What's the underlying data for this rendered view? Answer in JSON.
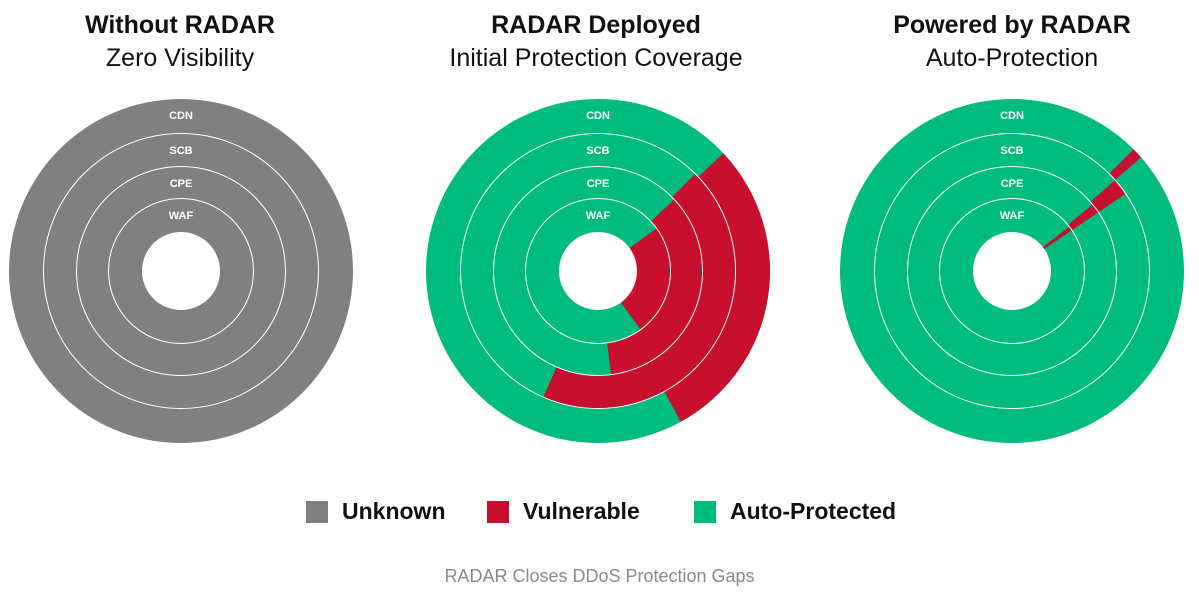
{
  "chart_data": [
    {
      "type": "donut",
      "title": "Without RADAR",
      "subtitle": "Zero Visibility",
      "rings": [
        {
          "label": "CDN",
          "segments": [
            {
              "status": "Unknown",
              "fraction": 1.0
            }
          ]
        },
        {
          "label": "SCB",
          "segments": [
            {
              "status": "Unknown",
              "fraction": 1.0
            }
          ]
        },
        {
          "label": "CPE",
          "segments": [
            {
              "status": "Unknown",
              "fraction": 1.0
            }
          ]
        },
        {
          "label": "WAF",
          "segments": [
            {
              "status": "Unknown",
              "fraction": 1.0
            }
          ]
        }
      ]
    },
    {
      "type": "donut",
      "title": "RADAR Deployed",
      "subtitle": "Initial Protection Coverage",
      "rings": [
        {
          "label": "CDN",
          "segments": [
            {
              "status": "Vulnerable",
              "start": 0.13,
              "fraction": 0.29
            }
          ]
        },
        {
          "label": "SCB",
          "segments": [
            {
              "status": "Vulnerable",
              "start": 0.125,
              "fraction": 0.44
            }
          ]
        },
        {
          "label": "CPE",
          "segments": [
            {
              "status": "Vulnerable",
              "start": 0.13,
              "fraction": 0.35
            }
          ]
        },
        {
          "label": "WAF",
          "segments": [
            {
              "status": "Vulnerable",
              "start": 0.15,
              "fraction": 0.25
            }
          ]
        }
      ]
    },
    {
      "type": "donut",
      "title": "Powered by RADAR",
      "subtitle": "Auto-Protection",
      "rings": [
        {
          "label": "CDN",
          "segments": [
            {
              "status": "Vulnerable",
              "start": 0.125,
              "fraction": 0.01
            }
          ]
        },
        {
          "label": "SCB",
          "segments": [
            {
              "status": "Vulnerable",
              "start": 0.135,
              "fraction": 0.02
            }
          ]
        },
        {
          "label": "CPE",
          "segments": [
            {
              "status": "Vulnerable",
              "start": 0.14,
              "fraction": 0.015
            }
          ]
        },
        {
          "label": "WAF",
          "segments": [
            {
              "status": "Vulnerable",
              "start": 0.145,
              "fraction": 0.01
            }
          ]
        }
      ]
    }
  ],
  "legend": [
    {
      "label": "Unknown",
      "color": "#808080"
    },
    {
      "label": "Vulnerable",
      "color": "#c8102e"
    },
    {
      "label": "Auto-Protected",
      "color": "#00bc7e"
    }
  ],
  "colors": {
    "Unknown": "#808080",
    "Vulnerable": "#c8102e",
    "Auto-Protected": "#00bc7e"
  },
  "caption": "RADAR Closes DDoS Protection Gaps"
}
